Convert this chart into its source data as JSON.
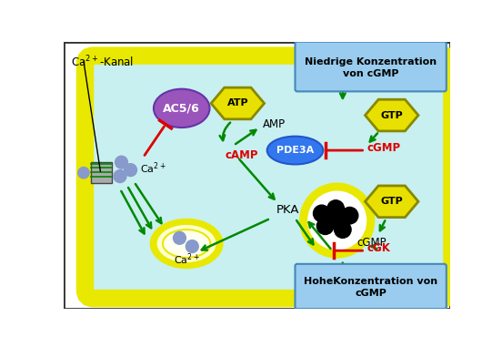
{
  "cell_bg": "#c8f0f0",
  "cell_border_color": "#e8e800",
  "outer_bg": "#ffffff",
  "arrow_green": "#008800",
  "arrow_red": "#dd0000",
  "text_color_black": "#000000",
  "text_color_red": "#dd0000",
  "hexagon_fill": "#e8e000",
  "hexagon_border": "#888800",
  "ac56_fill": "#9955bb",
  "pde3a_fill": "#3377ee",
  "nucleus_outer": "#e8e800",
  "nucleus_inner": "#ffffff",
  "ca_dots_color": "#8899cc",
  "niedrige_text": "Niedrige Konzentration\nvon cGMP",
  "hohe_text": "HoheKonzentration von\ncGMP",
  "ca_kanal_label": "Ca²⁺-Kanal"
}
